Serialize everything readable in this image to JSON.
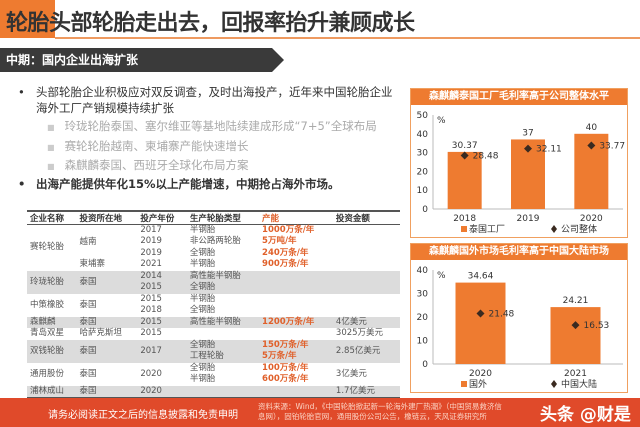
{
  "title": "轮胎头部轮胎走出去，回报率抬升兼顾成长",
  "banner": "中期：国内企业出海扩张",
  "bullets": [
    {
      "text": "头部轮胎企业积极应对双反调查，及时出海投产，近年来中国轮胎企业海外工厂产销规模持续扩张",
      "sub": [
        "玲珑轮胎泰国、塞尔维亚等基地陆续建成形成“7+5”全球布局",
        "赛轮轮胎越南、柬埔寨产能快速增长",
        "森麒麟泰国、西班牙全球化布局方案"
      ]
    },
    {
      "text": "出海产能提供年化15%以上产能增速，中期抢占海外市场。",
      "sub": []
    }
  ],
  "table": {
    "headers": [
      "企业名称",
      "投资所在地",
      "投产年份",
      "生产轮胎类型",
      "产能",
      "投资金额"
    ],
    "rows": {
      "sailun": {
        "company": "赛轮轮胎",
        "loc1": "越南",
        "loc2": "柬埔寨",
        "years": [
          "2017",
          "2019",
          "2019",
          "2021"
        ],
        "types": [
          "半钢胎",
          "非公路两轮胎",
          "全钢胎",
          "半钢胎"
        ],
        "caps": [
          "1000万条/年",
          "5万吨/年",
          "240万条/年",
          "900万条/年"
        ]
      },
      "linglong": {
        "company": "玲珑轮胎",
        "loc": "泰国",
        "years": [
          "2014",
          "2015"
        ],
        "types": [
          "高性能半钢胎",
          "全钢胎"
        ]
      },
      "zhongce": {
        "company": "中策橡胶",
        "loc": "泰国",
        "years": [
          "2015",
          "2018"
        ],
        "types": [
          "半钢胎",
          "全钢胎"
        ]
      },
      "senqilin": {
        "company": "森麒麟",
        "loc": "泰国",
        "year": "2015",
        "type": "高性能半钢胎",
        "cap": "1200万条/年",
        "inv": "4亿美元"
      },
      "qingdao": {
        "company": "青岛双星",
        "loc": "哈萨克斯坦",
        "year": "2015",
        "inv": "3025万美元"
      },
      "shuangqian": {
        "company": "双钱轮胎",
        "loc": "泰国",
        "year": "2017",
        "types": [
          "全钢胎",
          "工程轮胎"
        ],
        "caps": [
          "150万条/年",
          "5万条/年"
        ],
        "inv": "2.85亿美元"
      },
      "tongyong": {
        "company": "通用股份",
        "loc": "泰国",
        "year": "2020",
        "types": [
          "全钢胎",
          "半钢胎"
        ],
        "caps": [
          "100万条/年",
          "600万条/年"
        ],
        "inv": "3亿美元"
      },
      "pulin": {
        "company": "浦林成山",
        "loc": "泰国",
        "year": "2020",
        "inv": "1.7亿美元"
      }
    }
  },
  "chart_data": [
    {
      "type": "bar",
      "title": "森麒麟泰国工厂毛利率高于公司整体水平",
      "unit": "%",
      "categories": [
        "2018",
        "2019",
        "2020"
      ],
      "ylim": [
        0,
        50
      ],
      "yticks": [
        0,
        10,
        20,
        30,
        40,
        50
      ],
      "series": [
        {
          "name": "泰国工厂",
          "kind": "bar",
          "values": [
            30.37,
            37,
            40
          ],
          "labels": [
            "30.37",
            "37",
            "40"
          ]
        },
        {
          "name": "公司整体",
          "kind": "marker",
          "values": [
            28.48,
            32.11,
            33.77
          ],
          "labels": [
            "28.48",
            "32.11",
            "33.77"
          ]
        }
      ],
      "legend": "bottom",
      "colors": {
        "bar": "#ee7b30",
        "marker": "#3a2a20"
      }
    },
    {
      "type": "bar",
      "title": "森麒麟国外市场毛利率高于中国大陆市场",
      "unit": "%",
      "categories": [
        "2020",
        "2021"
      ],
      "ylim": [
        0,
        40
      ],
      "yticks": [
        0,
        10,
        20,
        30,
        40
      ],
      "series": [
        {
          "name": "国外",
          "kind": "bar",
          "values": [
            34.64,
            24.21
          ],
          "labels": [
            "34.64",
            "24.21"
          ]
        },
        {
          "name": "中国大陆",
          "kind": "marker",
          "values": [
            21.48,
            16.53
          ],
          "labels": [
            "21.48",
            "16.53"
          ]
        }
      ],
      "legend": "bottom",
      "colors": {
        "bar": "#ee7b30",
        "marker": "#3a2a20"
      }
    }
  ],
  "footer": {
    "disclaimer": "请务必阅读正文之后的信息披露和免责申明",
    "source": "资料来源：Wind，《中国轮胎掀起新一轮海外建厂热潮》（中国贸易救济信息网），固铂轮胎官网，通用股份公司公告，橡链云，天风证券研究所",
    "watermark": "头条 @财是"
  }
}
